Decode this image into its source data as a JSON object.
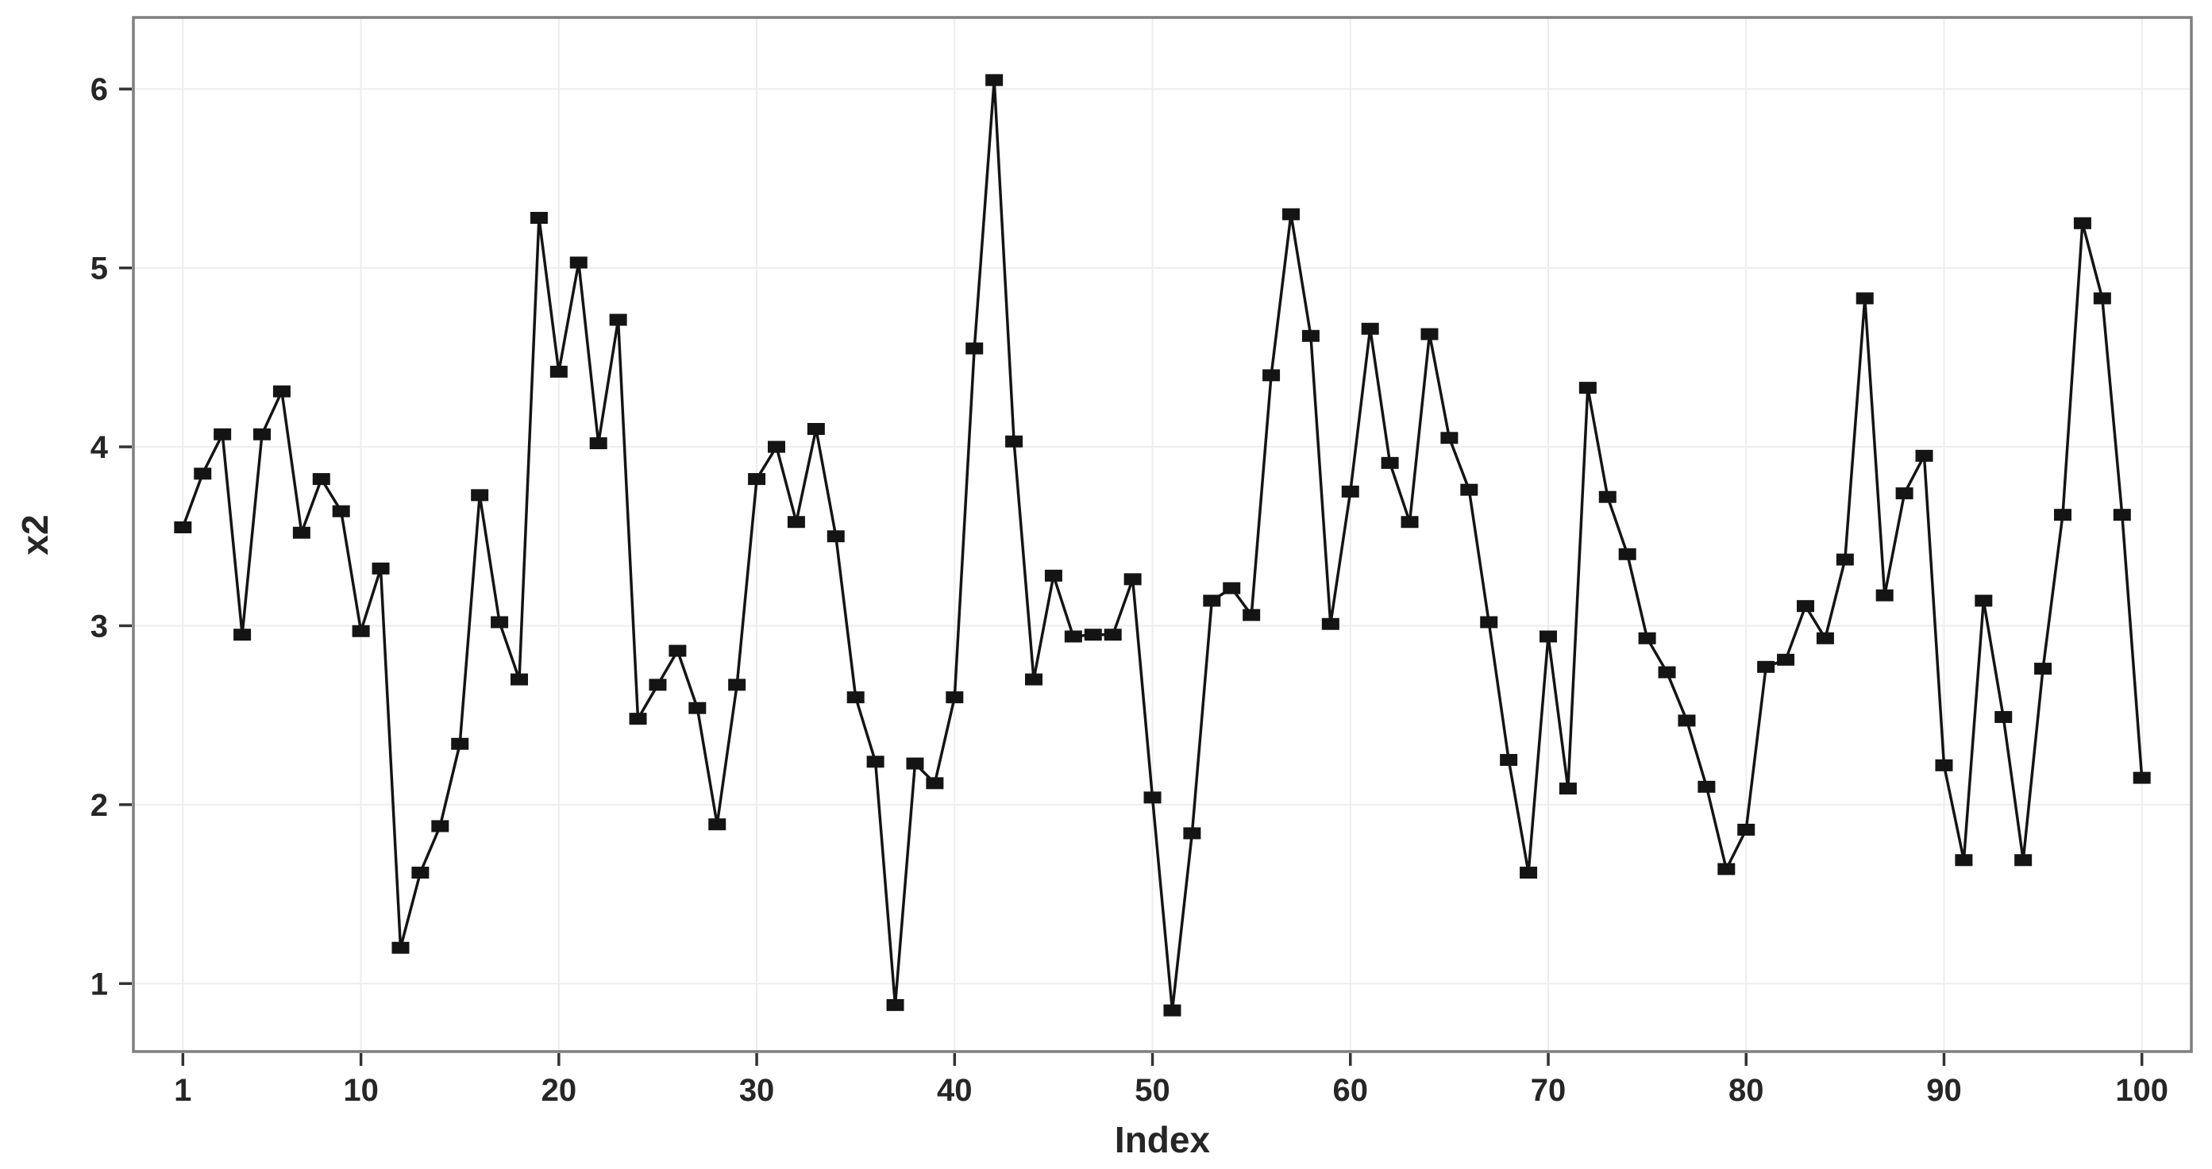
{
  "chart_data": {
    "type": "line",
    "title": "",
    "xlabel": "Index",
    "ylabel": "x2",
    "x": [
      1,
      2,
      3,
      4,
      5,
      6,
      7,
      8,
      9,
      10,
      11,
      12,
      13,
      14,
      15,
      16,
      17,
      18,
      19,
      20,
      21,
      22,
      23,
      24,
      25,
      26,
      27,
      28,
      29,
      30,
      31,
      32,
      33,
      34,
      35,
      36,
      37,
      38,
      39,
      40,
      41,
      42,
      43,
      44,
      45,
      46,
      47,
      48,
      49,
      50,
      51,
      52,
      53,
      54,
      55,
      56,
      57,
      58,
      59,
      60,
      61,
      62,
      63,
      64,
      65,
      66,
      67,
      68,
      69,
      70,
      71,
      72,
      73,
      74,
      75,
      76,
      77,
      78,
      79,
      80,
      81,
      82,
      83,
      84,
      85,
      86,
      87,
      88,
      89,
      90,
      91,
      92,
      93,
      94,
      95,
      96,
      97,
      98,
      99,
      100
    ],
    "series": [
      {
        "name": "x2",
        "values": [
          3.55,
          3.85,
          4.07,
          2.95,
          4.07,
          4.31,
          3.52,
          3.82,
          3.64,
          2.97,
          3.32,
          1.2,
          1.62,
          1.88,
          2.34,
          3.73,
          3.02,
          2.7,
          5.28,
          4.42,
          5.03,
          4.02,
          4.71,
          2.48,
          2.67,
          2.86,
          2.54,
          1.89,
          2.67,
          3.82,
          4.0,
          3.58,
          4.1,
          3.5,
          2.6,
          2.24,
          0.88,
          2.23,
          2.12,
          2.6,
          4.55,
          6.05,
          4.03,
          2.7,
          3.28,
          2.94,
          2.95,
          2.95,
          3.26,
          2.04,
          0.85,
          1.84,
          3.14,
          3.21,
          3.06,
          4.4,
          5.3,
          4.62,
          3.01,
          3.75,
          4.66,
          3.91,
          3.58,
          4.63,
          4.05,
          3.76,
          3.02,
          2.25,
          1.62,
          2.94,
          2.09,
          4.33,
          3.72,
          3.4,
          2.93,
          2.74,
          2.47,
          2.1,
          1.64,
          1.86,
          2.77,
          2.81,
          3.11,
          2.93,
          3.37,
          4.83,
          3.17,
          3.74,
          3.95,
          2.22,
          1.69,
          3.14,
          2.49,
          1.69,
          2.76,
          3.62,
          5.25,
          4.83,
          3.62,
          2.15
        ]
      }
    ],
    "x_ticks": [
      1,
      10,
      20,
      30,
      40,
      50,
      60,
      70,
      80,
      90,
      100
    ],
    "y_ticks": [
      1,
      2,
      3,
      4,
      5,
      6
    ],
    "xlim": [
      -1.5,
      102.5
    ],
    "ylim": [
      0.62,
      6.4
    ],
    "grid": "on",
    "legend": "none",
    "marker": "square",
    "colors": {
      "line": "#141414",
      "marker": "#141414",
      "gridline": "#ededed",
      "panel_border": "#7f7f7f",
      "tick_mark": "#333333",
      "text": "#262626",
      "background": "#ffffff"
    }
  }
}
